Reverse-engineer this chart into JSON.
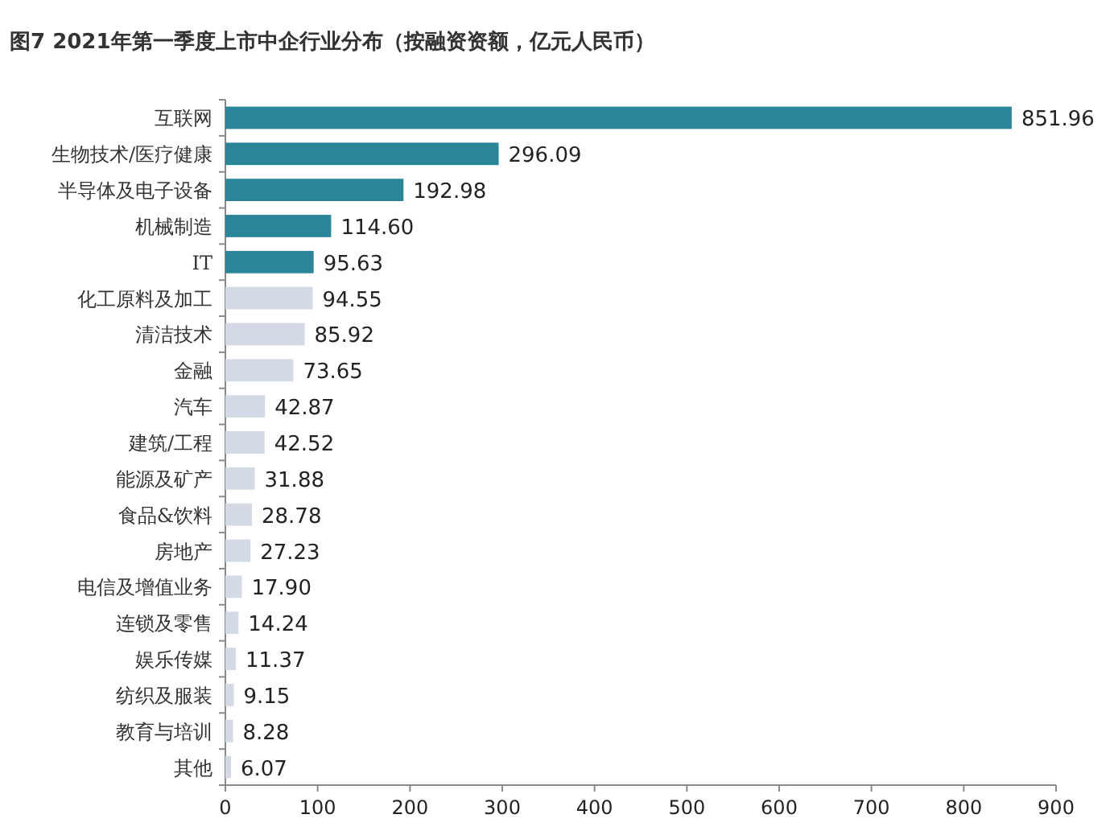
{
  "chart_data": {
    "type": "bar",
    "orientation": "horizontal",
    "title": "图7 2021年第一季度上市中企行业分布（按融资资额，亿元人民币）",
    "categories": [
      "互联网",
      "生物技术/医疗健康",
      "半导体及电子设备",
      "机械制造",
      "IT",
      "化工原料及加工",
      "清洁技术",
      "金融",
      "汽车",
      "建筑/工程",
      "能源及矿产",
      "食品&饮料",
      "房地产",
      "电信及增值业务",
      "连锁及零售",
      "娱乐传媒",
      "纺织及服装",
      "教育与培训",
      "其他"
    ],
    "values": [
      851.96,
      296.09,
      192.98,
      114.6,
      95.63,
      94.55,
      85.92,
      73.65,
      42.87,
      42.52,
      31.88,
      28.78,
      27.23,
      17.9,
      14.24,
      11.37,
      9.15,
      8.28,
      6.07
    ],
    "value_labels": [
      "851.96",
      "296.09",
      "192.98",
      "114.60",
      "95.63",
      "94.55",
      "85.92",
      "73.65",
      "42.87",
      "42.52",
      "31.88",
      "28.78",
      "27.23",
      "17.90",
      "14.24",
      "11.37",
      "9.15",
      "8.28",
      "6.07"
    ],
    "colors": [
      "#2a8598",
      "#2a8598",
      "#2a8598",
      "#2a8598",
      "#2a8598",
      "#d3dae6",
      "#d3dae6",
      "#d3dae6",
      "#d3dae6",
      "#d3dae6",
      "#d3dae6",
      "#d3dae6",
      "#d3dae6",
      "#d3dae6",
      "#d3dae6",
      "#d3dae6",
      "#d3dae6",
      "#d3dae6",
      "#d3dae6"
    ],
    "xlim": [
      0,
      900
    ],
    "xticks": [
      0,
      100,
      200,
      300,
      400,
      500,
      600,
      700,
      800,
      900
    ]
  }
}
